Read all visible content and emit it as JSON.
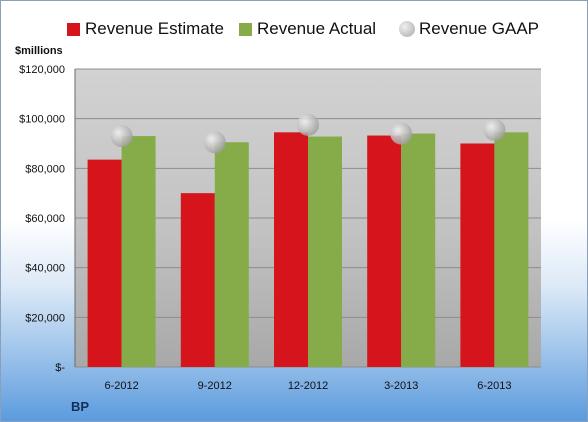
{
  "company": "BP",
  "unit_label": "$millions",
  "colors": {
    "estimate": "#d6141c",
    "actual": "#86ac4a",
    "gaap": "#b4b4b4"
  },
  "chart_data": {
    "type": "bar",
    "categories": [
      "6-2012",
      "9-2012",
      "12-2012",
      "3-2013",
      "6-2013"
    ],
    "series": [
      {
        "name": "Revenue Estimate",
        "type": "bar",
        "values": [
          83500,
          70000,
          94500,
          93200,
          90000
        ]
      },
      {
        "name": "Revenue Actual",
        "type": "bar",
        "values": [
          93000,
          90500,
          92800,
          94000,
          94500
        ]
      },
      {
        "name": "Revenue GAAP",
        "type": "scatter",
        "values": [
          93000,
          90500,
          97500,
          94000,
          95500
        ]
      }
    ],
    "yticks": [
      0,
      20000,
      40000,
      60000,
      80000,
      100000,
      120000
    ],
    "ytick_labels": [
      "$-",
      "$20,000",
      "$40,000",
      "$60,000",
      "$80,000",
      "$100,000",
      "$120,000"
    ],
    "ylim": [
      0,
      120000
    ],
    "grid": true,
    "legend": "top"
  }
}
